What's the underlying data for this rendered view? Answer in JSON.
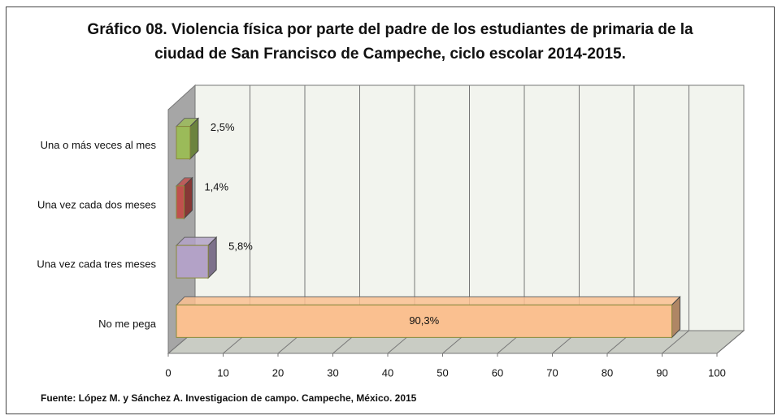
{
  "chart_data": {
    "type": "bar",
    "orientation": "horizontal",
    "title": "Gráfico 08. Violencia física por parte del padre de los estudiantes de primaria de la ciudad de San Francisco de Campeche, ciclo escolar 2014-2015.",
    "categories": [
      "Una o más veces al mes",
      "Una vez cada dos meses",
      "Una vez cada tres meses",
      "No me pega"
    ],
    "values": [
      2.5,
      1.4,
      5.8,
      90.3
    ],
    "value_labels": [
      "2,5%",
      "1,4%",
      "5,8%",
      "90,3%"
    ],
    "colors": [
      "#9bbb59",
      "#c0504d",
      "#b3a2c7",
      "#fac090"
    ],
    "xlim": [
      0,
      100
    ],
    "xticks": [
      0,
      10,
      20,
      30,
      40,
      50,
      60,
      70,
      80,
      90,
      100
    ],
    "grid": true,
    "note": "Fuente: López M. y Sánchez A. Investigacion de campo. Campeche, México. 2015"
  }
}
